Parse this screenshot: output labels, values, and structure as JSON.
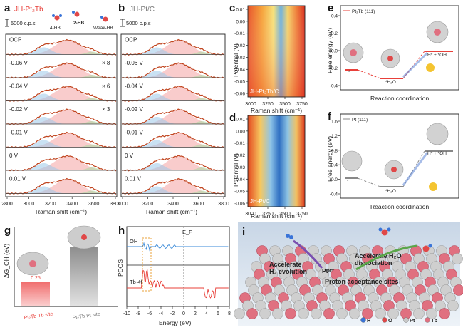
{
  "panels": {
    "a": {
      "letter": "a",
      "title": "JH-Pt₂Tb",
      "title_color": "#e8403a",
      "scale": "5000 c.p.s",
      "legend": {
        "hb4": "4-HB",
        "hb2": "2-HB",
        "weak": "Weak-HB"
      },
      "potentials": [
        "OCP",
        "-0.06 V",
        "-0.04 V",
        "-0.02 V",
        "-0.01 V",
        "0 V",
        "0.01 V"
      ],
      "multipliers": [
        "",
        "× 8",
        "× 6",
        "× 3",
        "",
        "",
        ""
      ],
      "xlabel": "Raman shift (cm⁻¹)",
      "xticks": [
        "2800",
        "3000",
        "3200",
        "3400",
        "3600",
        "3800"
      ]
    },
    "b": {
      "letter": "b",
      "title": "JH-Pt/C",
      "title_color": "#777777",
      "scale": "5000 c.p.s",
      "potentials": [
        "OCP",
        "-0.06 V",
        "-0.04 V",
        "-0.02 V",
        "-0.01 V",
        "0 V",
        "0.01 V"
      ],
      "xlabel": "Raman shift (cm⁻¹)",
      "xticks": [
        "3000",
        "3200",
        "3400",
        "3600",
        "3800"
      ]
    },
    "c": {
      "letter": "c",
      "inset": "JH-Pt₂Tb/C",
      "ylabel": "Potential (V)",
      "yticks": [
        "0.01",
        "0.00",
        "-0.01",
        "-0.02",
        "-0.03",
        "-0.04",
        "-0.05",
        "-0.06"
      ],
      "xlabel": "Raman shift (cm⁻¹)",
      "xticks": [
        "3000",
        "3250",
        "3500",
        "3750"
      ]
    },
    "d": {
      "letter": "d",
      "inset": "JH-Pt/C",
      "ylabel": "Potential (V)",
      "yticks": [
        "0.01",
        "0.00",
        "-0.01",
        "-0.02",
        "-0.03",
        "-0.04",
        "-0.05",
        "-0.06"
      ],
      "xlabel": "Raman shift (cm⁻¹)",
      "xticks": [
        "3000",
        "3250",
        "3500",
        "3750"
      ]
    },
    "e": {
      "letter": "e",
      "legend": "Pt₂Tb (111)",
      "ylabel": "Free energy (eV)",
      "yticks": [
        "0.4",
        "0.2",
        "0.0",
        "-0.2",
        "-0.4"
      ],
      "xlabel": "Reaction coordination",
      "states": [
        "*",
        "*H₂O",
        "H* + *OH"
      ],
      "color": "#e8403a"
    },
    "f": {
      "letter": "f",
      "legend": "Pt (111)",
      "ylabel": "Free energy (eV)",
      "yticks": [
        "1.6",
        "1.2",
        "0.8",
        "0.4",
        "0.0",
        "-0.4"
      ],
      "xlabel": "Reaction coordination",
      "states": [
        "*",
        "*H₂O",
        "H* + *OH"
      ],
      "color": "#777777"
    },
    "g": {
      "letter": "g",
      "ylabel": "ΔG_OH (eV)",
      "bars": [
        {
          "label": "Pt₂Tb-Tb site",
          "value": "0.25",
          "color": "#f08a8a",
          "label_color": "#e8403a"
        },
        {
          "label": "Pt₂Tb-Pt site",
          "value": "0.60",
          "color": "#9e9e9e",
          "label_color": "#777777"
        }
      ]
    },
    "h": {
      "letter": "h",
      "ylabel": "PDOS",
      "series": [
        "OH",
        "Tb-4f"
      ],
      "fermi": "E_F",
      "xlabel": "Energy (eV)",
      "xticks": [
        "-10",
        "-8",
        "-6",
        "-4",
        "-2",
        "0",
        "2",
        "4",
        "6",
        "8"
      ]
    },
    "i": {
      "letter": "i",
      "labels": {
        "h2": "Accelerate\nH₂ evolution",
        "h2o": "Accelerate H₂O\ndissociation",
        "sites": "Proton acceptance sites",
        "pt": "Pt⁸⁻"
      },
      "legend": [
        {
          "label": "H",
          "color": "#3a74d8"
        },
        {
          "label": "O",
          "color": "#e04848"
        },
        {
          "label": "Pt",
          "color": "#c8c8c8"
        },
        {
          "label": "Tb",
          "color": "#e07080"
        }
      ]
    }
  }
}
